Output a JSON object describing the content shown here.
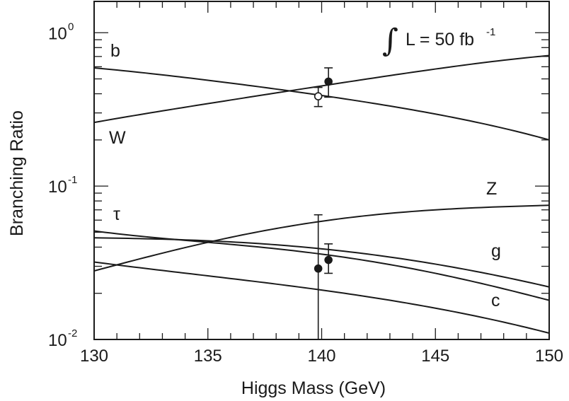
{
  "chart_data": {
    "type": "line",
    "title": "",
    "xlabel": "Higgs Mass (GeV)",
    "ylabel": "Branching Ratio",
    "xlim": [
      130,
      150
    ],
    "ylim": [
      0.01,
      1.6
    ],
    "yscale": "log",
    "grid": false,
    "x_ticks": [
      130,
      135,
      140,
      145,
      150
    ],
    "x_tick_labels": [
      "130",
      "135",
      "140",
      "145",
      "150"
    ],
    "y_ticks": [
      {
        "base": "10",
        "exp": "0",
        "value": 1
      },
      {
        "base": "10",
        "exp": "-1",
        "value": 0.1
      },
      {
        "base": "10",
        "exp": "-2",
        "value": 0.01
      }
    ],
    "x": [
      130,
      135,
      140,
      145,
      150
    ],
    "series": [
      {
        "name": "b",
        "values": [
          0.59,
          0.49,
          0.39,
          0.295,
          0.2
        ]
      },
      {
        "name": "W",
        "values": [
          0.26,
          0.345,
          0.45,
          0.58,
          0.71
        ]
      },
      {
        "name": "Z",
        "values": [
          0.028,
          0.043,
          0.059,
          0.07,
          0.075
        ]
      },
      {
        "name": "τ",
        "values": [
          0.051,
          0.043,
          0.036,
          0.027,
          0.018
        ]
      },
      {
        "name": "g",
        "values": [
          0.046,
          0.044,
          0.039,
          0.031,
          0.022
        ]
      },
      {
        "name": "c",
        "values": [
          0.032,
          0.026,
          0.021,
          0.016,
          0.011
        ]
      }
    ],
    "measurements": [
      {
        "x": 140.3,
        "y": 0.48,
        "ylow": 0.38,
        "yhigh": 0.59,
        "marker": "filled"
      },
      {
        "x": 139.85,
        "y": 0.385,
        "ylow": 0.33,
        "yhigh": 0.44,
        "marker": "open"
      },
      {
        "x": 140.3,
        "y": 0.033,
        "ylow": 0.027,
        "yhigh": 0.042,
        "marker": "filled"
      },
      {
        "x": 139.85,
        "y": 0.029,
        "ylow": 0.0088,
        "yhigh": 0.065,
        "marker": "filled"
      }
    ],
    "annotation": {
      "text": "L = 50 fb",
      "superscript": "-1",
      "integral": "∫"
    }
  }
}
